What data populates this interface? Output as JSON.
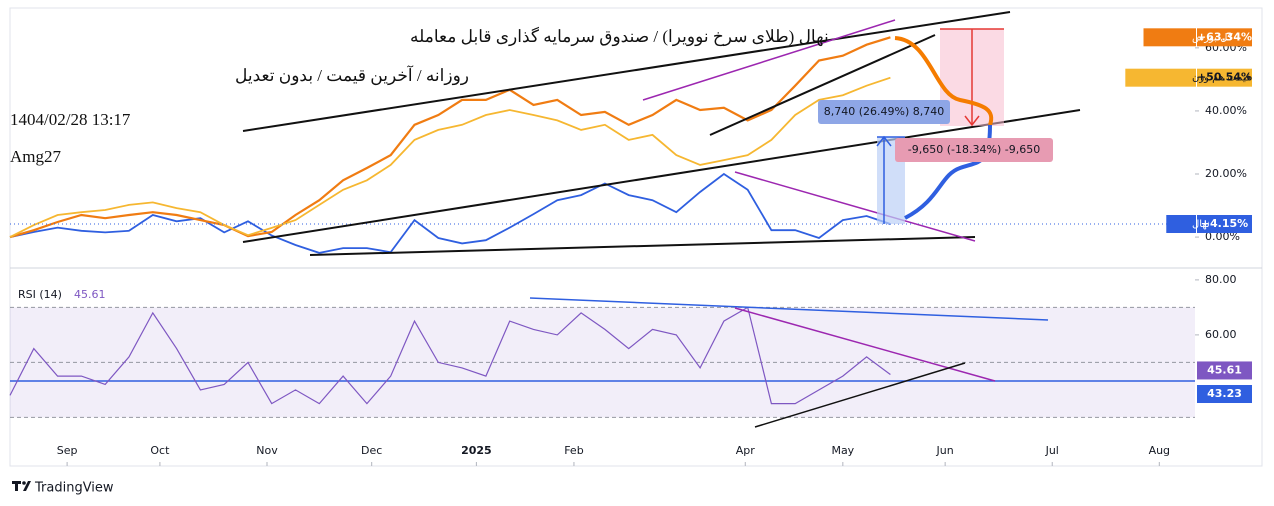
{
  "header": {
    "title": "نهال (طلای سرخ نوویرا) / صندوق سرمایه گذاری قابل معامله",
    "subtitle": "روزانه / آخرین قیمت / بدون تعدیل",
    "timestamp": "1404/02/28 13:17",
    "author": "Amg27"
  },
  "annotations": {
    "measure_up": "8,740 (26.49%) 8,740",
    "measure_down": "-9,650 (-18.34%) -9,650"
  },
  "footer": {
    "brand": "TradingView"
  },
  "chart_data": [
    {
      "type": "line",
      "x": [
        0,
        1,
        2,
        3,
        4,
        5,
        6,
        7,
        8,
        9,
        10,
        11,
        12,
        13,
        14,
        15,
        16,
        17,
        18,
        19,
        20,
        21,
        22,
        23,
        24,
        25,
        26,
        27,
        28,
        29,
        30,
        31,
        32,
        33,
        34,
        35,
        36,
        37
      ],
      "xlim": [
        0,
        49.8
      ],
      "ylim": [
        -9.8,
        72
      ],
      "yticks": [
        {
          "value": 0,
          "label": "0.00%"
        },
        {
          "value": 20,
          "label": "20.00%"
        },
        {
          "value": 40,
          "label": "40.00%"
        },
        {
          "value": 60,
          "label": "60.00%"
        }
      ],
      "series": [
        {
          "name": "نهال",
          "color": "#2f5fe0",
          "values": [
            0,
            1.6,
            3,
            2,
            1.5,
            2,
            7,
            5,
            6,
            1.5,
            5,
            0.5,
            -2.5,
            -5,
            -3.5,
            -3.5,
            -4.8,
            5.4,
            -0.3,
            -2,
            -1,
            3,
            7.3,
            11.7,
            13.3,
            17,
            13.3,
            11.7,
            7.9,
            14.3,
            20,
            15,
            2.2,
            2.2,
            -0.3,
            5.4,
            6.7,
            4.15
          ],
          "value_labels": [
            null,
            null,
            null,
            null,
            null,
            null,
            null,
            null,
            null,
            null,
            null,
            null,
            null,
            null,
            null,
            null,
            null,
            null,
            null,
            null,
            null,
            null,
            null,
            null,
            null,
            null,
            null,
            null,
            null,
            null,
            null,
            null,
            null,
            null,
            null,
            null,
            null,
            "+4.15%"
          ]
        },
        {
          "name": "کل بورس",
          "color": "#f07c12",
          "values": [
            0,
            2.2,
            4.8,
            7,
            6,
            7,
            7.9,
            7,
            5.4,
            3.8,
            0.3,
            1.6,
            7,
            11.7,
            18,
            21.9,
            26,
            35.6,
            38.7,
            43.5,
            43.5,
            46.7,
            41.9,
            43.5,
            38.7,
            39.7,
            35.6,
            38.7,
            43.5,
            40.3,
            41,
            37,
            40.3,
            48,
            56,
            57.5,
            61,
            63.34
          ],
          "value_labels": [
            null,
            null,
            null,
            null,
            null,
            null,
            null,
            null,
            null,
            null,
            null,
            null,
            null,
            null,
            null,
            null,
            null,
            null,
            null,
            null,
            null,
            null,
            null,
            null,
            null,
            null,
            null,
            null,
            null,
            null,
            null,
            null,
            null,
            null,
            null,
            null,
            null,
            "+63.34%"
          ]
        },
        {
          "name": "قیمت هم وزن",
          "color": "#f6b731",
          "values": [
            0,
            3.8,
            7,
            7.9,
            8.6,
            10.2,
            11,
            9.2,
            7.9,
            3.8,
            0.6,
            2.9,
            5.4,
            10.2,
            15,
            18,
            22.9,
            30.8,
            34,
            35.6,
            38.7,
            40.3,
            38.7,
            37,
            34,
            35.6,
            30.8,
            32.4,
            26,
            22.9,
            24.4,
            26,
            30.8,
            38.7,
            43.5,
            45,
            48,
            50.54
          ],
          "value_labels": [
            null,
            null,
            null,
            null,
            null,
            null,
            null,
            null,
            null,
            null,
            null,
            null,
            null,
            null,
            null,
            null,
            null,
            null,
            null,
            null,
            null,
            null,
            null,
            null,
            null,
            null,
            null,
            null,
            null,
            null,
            null,
            null,
            null,
            null,
            null,
            null,
            null,
            "+50.54%"
          ]
        }
      ]
    },
    {
      "type": "line",
      "title": "RSI (14)",
      "color": "#7e57c2",
      "x": [
        0,
        1,
        2,
        3,
        4,
        5,
        6,
        7,
        8,
        9,
        10,
        11,
        12,
        13,
        14,
        15,
        16,
        17,
        18,
        19,
        20,
        21,
        22,
        23,
        24,
        25,
        26,
        27,
        28,
        29,
        30,
        31,
        32,
        33,
        34,
        35,
        36,
        37
      ],
      "xlim": [
        0,
        49.8
      ],
      "ylim": [
        22.5,
        83.6
      ],
      "xticks": [
        {
          "value": 2.4,
          "label": "Sep"
        },
        {
          "value": 6.3,
          "label": "Oct"
        },
        {
          "value": 10.8,
          "label": "Nov"
        },
        {
          "value": 15.2,
          "label": "Dec"
        },
        {
          "value": 19.6,
          "label": "2025"
        },
        {
          "value": 23.7,
          "label": "Feb"
        },
        {
          "value": 30.9,
          "label": "Apr"
        },
        {
          "value": 35,
          "label": "May"
        },
        {
          "value": 39.3,
          "label": "Jun"
        },
        {
          "value": 43.8,
          "label": "Jul"
        },
        {
          "value": 48.3,
          "label": "Aug"
        }
      ],
      "yticks": [
        {
          "value": 80,
          "label": "80.00"
        },
        {
          "value": 60,
          "label": "60.00"
        }
      ],
      "band": [
        30,
        70
      ],
      "dashed_levels": [
        30,
        50,
        70
      ],
      "hline": {
        "value": 43.23,
        "color": "#2f5fe0"
      },
      "values": [
        38,
        55,
        45,
        45,
        42,
        52,
        68,
        55,
        40,
        42,
        50,
        35,
        40,
        35,
        45,
        35,
        45,
        65,
        50,
        48,
        45,
        65,
        62,
        60,
        68,
        62,
        55,
        62,
        60,
        48,
        65,
        70,
        35,
        35,
        40,
        45,
        52,
        45.61
      ]
    }
  ]
}
